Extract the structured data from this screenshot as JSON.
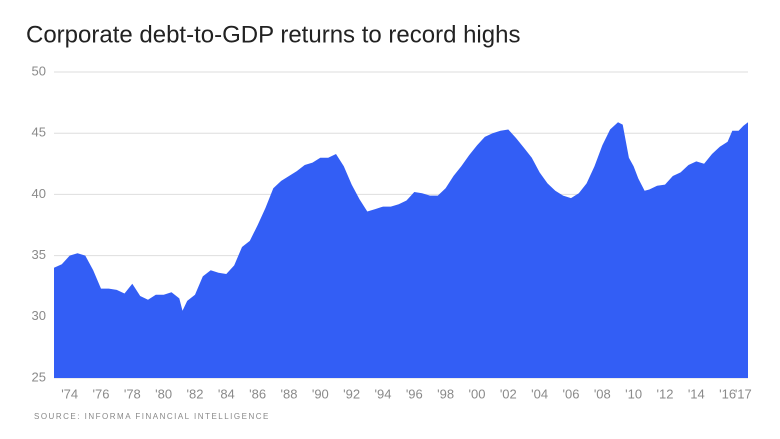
{
  "chart_data": {
    "type": "area",
    "title": "Corporate debt-to-GDP returns to record highs",
    "source": "SOURCE: INFORMA FINANCIAL INTELLIGENCE",
    "color": "#335ef5",
    "grid": true,
    "x": [
      1973.0,
      1973.5,
      1974.0,
      1974.5,
      1975.0,
      1975.5,
      1976.0,
      1976.5,
      1977.0,
      1977.5,
      1978.0,
      1978.5,
      1979.0,
      1979.5,
      1980.0,
      1980.5,
      1981.0,
      1981.2,
      1981.5,
      1982.0,
      1982.5,
      1983.0,
      1983.5,
      1984.0,
      1984.5,
      1985.0,
      1985.5,
      1986.0,
      1986.5,
      1987.0,
      1987.5,
      1988.0,
      1988.5,
      1989.0,
      1989.5,
      1990.0,
      1990.5,
      1991.0,
      1991.5,
      1992.0,
      1992.5,
      1993.0,
      1993.5,
      1994.0,
      1994.5,
      1995.0,
      1995.5,
      1996.0,
      1996.5,
      1997.0,
      1997.5,
      1998.0,
      1998.5,
      1999.0,
      1999.5,
      2000.0,
      2000.5,
      2001.0,
      2001.5,
      2002.0,
      2002.5,
      2003.0,
      2003.5,
      2004.0,
      2004.5,
      2005.0,
      2005.5,
      2006.0,
      2006.5,
      2007.0,
      2007.5,
      2008.0,
      2008.5,
      2009.0,
      2009.3,
      2009.7,
      2010.0,
      2010.3,
      2010.7,
      2011.0,
      2011.5,
      2012.0,
      2012.5,
      2013.0,
      2013.5,
      2014.0,
      2014.5,
      2015.0,
      2015.5,
      2016.0,
      2016.3,
      2016.7,
      2017.0,
      2017.3
    ],
    "values": [
      34.0,
      34.3,
      35.0,
      35.2,
      35.0,
      33.8,
      32.3,
      32.3,
      32.2,
      31.9,
      32.7,
      31.7,
      31.4,
      31.8,
      31.8,
      32.0,
      31.5,
      30.5,
      31.3,
      31.8,
      33.3,
      33.8,
      33.6,
      33.5,
      34.2,
      35.7,
      36.2,
      37.5,
      38.9,
      40.5,
      41.1,
      41.5,
      41.9,
      42.4,
      42.6,
      43.0,
      43.0,
      43.3,
      42.3,
      40.8,
      39.6,
      38.6,
      38.8,
      39.0,
      39.0,
      39.2,
      39.5,
      40.2,
      40.1,
      39.9,
      39.9,
      40.5,
      41.5,
      42.3,
      43.2,
      44.0,
      44.7,
      45.0,
      45.2,
      45.3,
      44.6,
      43.8,
      43.0,
      41.8,
      40.9,
      40.3,
      39.9,
      39.7,
      40.1,
      40.9,
      42.3,
      44.0,
      45.3,
      45.9,
      45.7,
      43.0,
      42.3,
      41.3,
      40.3,
      40.4,
      40.7,
      40.8,
      41.5,
      41.8,
      42.4,
      42.7,
      42.5,
      43.3,
      43.9,
      44.3,
      45.2,
      45.2,
      45.6,
      45.9
    ],
    "xlim": [
      1973.0,
      2017.3
    ],
    "xticks": [
      {
        "value": 1974,
        "label": "'74"
      },
      {
        "value": 1976,
        "label": "'76"
      },
      {
        "value": 1978,
        "label": "'78"
      },
      {
        "value": 1980,
        "label": "'80"
      },
      {
        "value": 1982,
        "label": "'82"
      },
      {
        "value": 1984,
        "label": "'84"
      },
      {
        "value": 1986,
        "label": "'86"
      },
      {
        "value": 1988,
        "label": "'88"
      },
      {
        "value": 1990,
        "label": "'90"
      },
      {
        "value": 1992,
        "label": "'92"
      },
      {
        "value": 1994,
        "label": "'94"
      },
      {
        "value": 1996,
        "label": "'96"
      },
      {
        "value": 1998,
        "label": "'98"
      },
      {
        "value": 2000,
        "label": "'00"
      },
      {
        "value": 2002,
        "label": "'02"
      },
      {
        "value": 2004,
        "label": "'04"
      },
      {
        "value": 2006,
        "label": "'06"
      },
      {
        "value": 2008,
        "label": "'08"
      },
      {
        "value": 2010,
        "label": "'10"
      },
      {
        "value": 2012,
        "label": "'12"
      },
      {
        "value": 2014,
        "label": "'14"
      },
      {
        "value": 2016,
        "label": "'16"
      },
      {
        "value": 2017,
        "label": "'17"
      }
    ],
    "ylim": [
      25,
      50
    ],
    "yticks": [
      25,
      30,
      35,
      40,
      45,
      50
    ]
  }
}
